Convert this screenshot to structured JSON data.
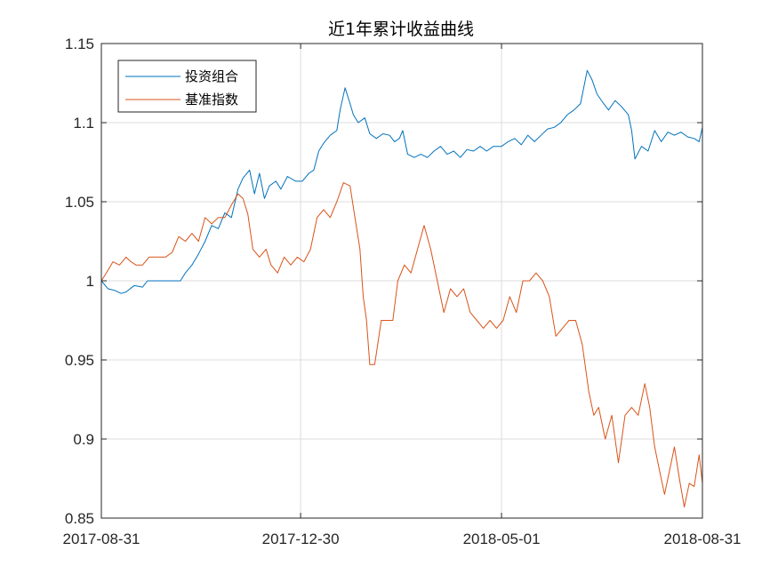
{
  "chart_data": {
    "type": "line",
    "title": "近1年累计收益曲线",
    "xlabel": "",
    "ylabel": "",
    "x_ticks": [
      "2017-08-31",
      "2017-12-30",
      "2018-05-01",
      "2018-08-31"
    ],
    "xlim": [
      "2017-08-31",
      "2018-08-31"
    ],
    "ylim": [
      0.85,
      1.15
    ],
    "y_ticks": [
      0.85,
      0.9,
      0.95,
      1,
      1.05,
      1.1,
      1.15
    ],
    "grid": true,
    "legend": "top-left",
    "series": [
      {
        "name": "投资组合",
        "color": "#0072BD",
        "points": [
          [
            "2017-08-31",
            1.0
          ],
          [
            "2017-09-04",
            0.995
          ],
          [
            "2017-09-08",
            0.994
          ],
          [
            "2017-09-12",
            0.992
          ],
          [
            "2017-09-15",
            0.993
          ],
          [
            "2017-09-20",
            0.997
          ],
          [
            "2017-09-25",
            0.996
          ],
          [
            "2017-09-28",
            1.0
          ],
          [
            "2017-10-04",
            1.0
          ],
          [
            "2017-10-09",
            1.0
          ],
          [
            "2017-10-13",
            1.0
          ],
          [
            "2017-10-18",
            1.0
          ],
          [
            "2017-10-21",
            1.005
          ],
          [
            "2017-10-25",
            1.01
          ],
          [
            "2017-10-29",
            1.017
          ],
          [
            "2017-11-02",
            1.025
          ],
          [
            "2017-11-06",
            1.035
          ],
          [
            "2017-11-10",
            1.033
          ],
          [
            "2017-11-14",
            1.043
          ],
          [
            "2017-11-18",
            1.04
          ],
          [
            "2017-11-22",
            1.058
          ],
          [
            "2017-11-25",
            1.065
          ],
          [
            "2017-11-29",
            1.07
          ],
          [
            "2017-12-02",
            1.055
          ],
          [
            "2017-12-05",
            1.068
          ],
          [
            "2017-12-08",
            1.052
          ],
          [
            "2017-12-11",
            1.06
          ],
          [
            "2017-12-15",
            1.063
          ],
          [
            "2017-12-18",
            1.058
          ],
          [
            "2017-12-22",
            1.066
          ],
          [
            "2017-12-27",
            1.063
          ],
          [
            "2017-12-31",
            1.063
          ],
          [
            "2018-01-04",
            1.068
          ],
          [
            "2018-01-07",
            1.07
          ],
          [
            "2018-01-10",
            1.082
          ],
          [
            "2018-01-13",
            1.087
          ],
          [
            "2018-01-17",
            1.092
          ],
          [
            "2018-01-21",
            1.095
          ],
          [
            "2018-01-23",
            1.108
          ],
          [
            "2018-01-26",
            1.122
          ],
          [
            "2018-01-29",
            1.112
          ],
          [
            "2018-01-31",
            1.105
          ],
          [
            "2018-02-03",
            1.1
          ],
          [
            "2018-02-07",
            1.103
          ],
          [
            "2018-02-10",
            1.093
          ],
          [
            "2018-02-14",
            1.09
          ],
          [
            "2018-02-18",
            1.093
          ],
          [
            "2018-02-22",
            1.092
          ],
          [
            "2018-02-25",
            1.088
          ],
          [
            "2018-02-28",
            1.09
          ],
          [
            "2018-03-02",
            1.095
          ],
          [
            "2018-03-05",
            1.08
          ],
          [
            "2018-03-09",
            1.078
          ],
          [
            "2018-03-13",
            1.08
          ],
          [
            "2018-03-17",
            1.078
          ],
          [
            "2018-03-21",
            1.082
          ],
          [
            "2018-03-25",
            1.085
          ],
          [
            "2018-03-29",
            1.08
          ],
          [
            "2018-04-02",
            1.082
          ],
          [
            "2018-04-06",
            1.078
          ],
          [
            "2018-04-10",
            1.083
          ],
          [
            "2018-04-14",
            1.082
          ],
          [
            "2018-04-18",
            1.085
          ],
          [
            "2018-04-22",
            1.082
          ],
          [
            "2018-04-26",
            1.085
          ],
          [
            "2018-05-01",
            1.085
          ],
          [
            "2018-05-05",
            1.088
          ],
          [
            "2018-05-09",
            1.09
          ],
          [
            "2018-05-13",
            1.086
          ],
          [
            "2018-05-17",
            1.092
          ],
          [
            "2018-05-21",
            1.088
          ],
          [
            "2018-05-25",
            1.092
          ],
          [
            "2018-05-29",
            1.096
          ],
          [
            "2018-06-02",
            1.097
          ],
          [
            "2018-06-06",
            1.1
          ],
          [
            "2018-06-10",
            1.105
          ],
          [
            "2018-06-14",
            1.108
          ],
          [
            "2018-06-18",
            1.112
          ],
          [
            "2018-06-22",
            1.133
          ],
          [
            "2018-06-25",
            1.127
          ],
          [
            "2018-06-28",
            1.118
          ],
          [
            "2018-07-02",
            1.112
          ],
          [
            "2018-07-05",
            1.108
          ],
          [
            "2018-07-09",
            1.114
          ],
          [
            "2018-07-13",
            1.11
          ],
          [
            "2018-07-17",
            1.105
          ],
          [
            "2018-07-19",
            1.095
          ],
          [
            "2018-07-21",
            1.077
          ],
          [
            "2018-07-25",
            1.085
          ],
          [
            "2018-07-29",
            1.082
          ],
          [
            "2018-08-02",
            1.095
          ],
          [
            "2018-08-06",
            1.088
          ],
          [
            "2018-08-10",
            1.094
          ],
          [
            "2018-08-14",
            1.092
          ],
          [
            "2018-08-18",
            1.094
          ],
          [
            "2018-08-22",
            1.091
          ],
          [
            "2018-08-26",
            1.09
          ],
          [
            "2018-08-29",
            1.088
          ],
          [
            "2018-08-31",
            1.097
          ]
        ]
      },
      {
        "name": "基准指数",
        "color": "#D95319",
        "points": [
          [
            "2017-08-31",
            1.0
          ],
          [
            "2017-09-03",
            1.005
          ],
          [
            "2017-09-07",
            1.012
          ],
          [
            "2017-09-11",
            1.01
          ],
          [
            "2017-09-15",
            1.015
          ],
          [
            "2017-09-18",
            1.012
          ],
          [
            "2017-09-21",
            1.01
          ],
          [
            "2017-09-25",
            1.01
          ],
          [
            "2017-09-29",
            1.015
          ],
          [
            "2017-10-04",
            1.015
          ],
          [
            "2017-10-09",
            1.015
          ],
          [
            "2017-10-13",
            1.018
          ],
          [
            "2017-10-17",
            1.028
          ],
          [
            "2017-10-21",
            1.025
          ],
          [
            "2017-10-25",
            1.03
          ],
          [
            "2017-10-29",
            1.025
          ],
          [
            "2017-11-02",
            1.04
          ],
          [
            "2017-11-06",
            1.036
          ],
          [
            "2017-11-10",
            1.04
          ],
          [
            "2017-11-14",
            1.04
          ],
          [
            "2017-11-18",
            1.048
          ],
          [
            "2017-11-22",
            1.055
          ],
          [
            "2017-11-25",
            1.052
          ],
          [
            "2017-11-28",
            1.042
          ],
          [
            "2017-12-01",
            1.02
          ],
          [
            "2017-12-05",
            1.015
          ],
          [
            "2017-12-09",
            1.02
          ],
          [
            "2017-12-12",
            1.01
          ],
          [
            "2017-12-16",
            1.005
          ],
          [
            "2017-12-20",
            1.015
          ],
          [
            "2017-12-24",
            1.01
          ],
          [
            "2017-12-28",
            1.015
          ],
          [
            "2018-01-01",
            1.012
          ],
          [
            "2018-01-05",
            1.02
          ],
          [
            "2018-01-09",
            1.04
          ],
          [
            "2018-01-13",
            1.045
          ],
          [
            "2018-01-17",
            1.04
          ],
          [
            "2018-01-21",
            1.05
          ],
          [
            "2018-01-25",
            1.062
          ],
          [
            "2018-01-29",
            1.06
          ],
          [
            "2018-02-01",
            1.04
          ],
          [
            "2018-02-04",
            1.02
          ],
          [
            "2018-02-06",
            0.99
          ],
          [
            "2018-02-08",
            0.975
          ],
          [
            "2018-02-10",
            0.947
          ],
          [
            "2018-02-13",
            0.947
          ],
          [
            "2018-02-17",
            0.975
          ],
          [
            "2018-02-21",
            0.975
          ],
          [
            "2018-02-24",
            0.975
          ],
          [
            "2018-02-27",
            1.0
          ],
          [
            "2018-03-03",
            1.01
          ],
          [
            "2018-03-07",
            1.005
          ],
          [
            "2018-03-11",
            1.02
          ],
          [
            "2018-03-15",
            1.035
          ],
          [
            "2018-03-19",
            1.02
          ],
          [
            "2018-03-23",
            1.0
          ],
          [
            "2018-03-27",
            0.98
          ],
          [
            "2018-03-31",
            0.995
          ],
          [
            "2018-04-04",
            0.99
          ],
          [
            "2018-04-08",
            0.995
          ],
          [
            "2018-04-12",
            0.98
          ],
          [
            "2018-04-16",
            0.975
          ],
          [
            "2018-04-20",
            0.97
          ],
          [
            "2018-04-24",
            0.975
          ],
          [
            "2018-04-28",
            0.97
          ],
          [
            "2018-05-02",
            0.975
          ],
          [
            "2018-05-06",
            0.99
          ],
          [
            "2018-05-10",
            0.98
          ],
          [
            "2018-05-14",
            1.0
          ],
          [
            "2018-05-18",
            1.0
          ],
          [
            "2018-05-22",
            1.005
          ],
          [
            "2018-05-26",
            1.0
          ],
          [
            "2018-05-30",
            0.99
          ],
          [
            "2018-06-03",
            0.965
          ],
          [
            "2018-06-07",
            0.97
          ],
          [
            "2018-06-11",
            0.975
          ],
          [
            "2018-06-15",
            0.975
          ],
          [
            "2018-06-19",
            0.96
          ],
          [
            "2018-06-23",
            0.93
          ],
          [
            "2018-06-26",
            0.915
          ],
          [
            "2018-06-29",
            0.92
          ],
          [
            "2018-07-03",
            0.9
          ],
          [
            "2018-07-07",
            0.915
          ],
          [
            "2018-07-11",
            0.885
          ],
          [
            "2018-07-15",
            0.915
          ],
          [
            "2018-07-19",
            0.92
          ],
          [
            "2018-07-23",
            0.915
          ],
          [
            "2018-07-27",
            0.935
          ],
          [
            "2018-07-30",
            0.92
          ],
          [
            "2018-08-02",
            0.895
          ],
          [
            "2018-08-05",
            0.88
          ],
          [
            "2018-08-08",
            0.865
          ],
          [
            "2018-08-11",
            0.88
          ],
          [
            "2018-08-14",
            0.895
          ],
          [
            "2018-08-17",
            0.875
          ],
          [
            "2018-08-20",
            0.857
          ],
          [
            "2018-08-23",
            0.872
          ],
          [
            "2018-08-26",
            0.87
          ],
          [
            "2018-08-29",
            0.89
          ],
          [
            "2018-08-31",
            0.872
          ]
        ]
      }
    ]
  }
}
